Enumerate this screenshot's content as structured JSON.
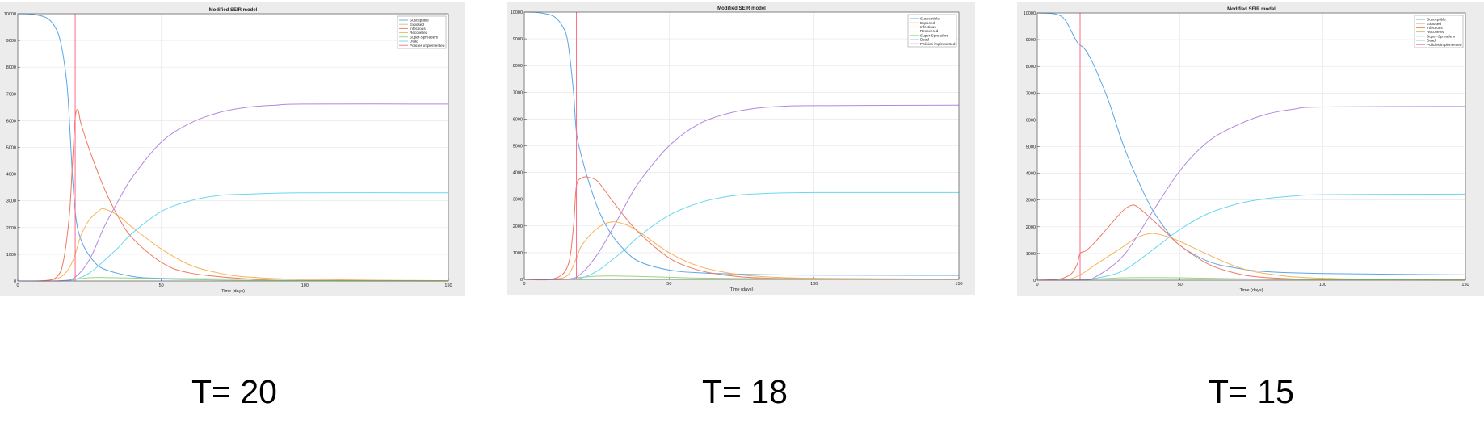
{
  "colors": {
    "Susceptible": "#5aa6e6",
    "Exposed": "#f6b35a",
    "Infectious": "#f07860",
    "Recovered": "#c9c060",
    "Super-Spreaders": "#9ad47a",
    "Dead": "#6ad6ee",
    "Policies implemented": "#ff6a8a",
    "Recovered_line": "#b487dd"
  },
  "chart_data": [
    {
      "type": "line",
      "title": "Modified SEIR model",
      "xlabel": "Time (days)",
      "xlim": [
        0,
        150
      ],
      "ylim": [
        0,
        10000
      ],
      "xticks": [
        0,
        50,
        100,
        150
      ],
      "yticks": [
        0,
        1000,
        2000,
        3000,
        4000,
        5000,
        6000,
        7000,
        8000,
        9000,
        10000
      ],
      "grid": true,
      "legend_position": "top-right",
      "legend": [
        "Susceptible",
        "Exposed",
        "Infectious",
        "Recovered",
        "Super-Spreaders",
        "Dead",
        "Policies implemented"
      ],
      "policy_time": 20,
      "series": [
        {
          "name": "Susceptible",
          "x": [
            0,
            5,
            10,
            13,
            15,
            17,
            18,
            19,
            20,
            21,
            23,
            26,
            30,
            40,
            50,
            70,
            100,
            150
          ],
          "y": [
            10000,
            9980,
            9850,
            9500,
            8900,
            7500,
            6000,
            4000,
            2600,
            1900,
            1300,
            800,
            450,
            170,
            100,
            80,
            75,
            75
          ]
        },
        {
          "name": "Exposed",
          "x": [
            0,
            10,
            15,
            18,
            20,
            22,
            25,
            28,
            30,
            35,
            40,
            50,
            60,
            70,
            80,
            100,
            150
          ],
          "y": [
            0,
            20,
            150,
            500,
            1000,
            1700,
            2300,
            2600,
            2700,
            2450,
            2000,
            1200,
            600,
            300,
            150,
            60,
            10
          ]
        },
        {
          "name": "Infectious",
          "x": [
            0,
            10,
            14,
            16,
            18,
            19,
            20,
            21,
            22,
            25,
            30,
            35,
            40,
            50,
            60,
            80,
            100,
            150
          ],
          "y": [
            0,
            20,
            200,
            800,
            2500,
            4300,
            6100,
            6400,
            5900,
            4900,
            3500,
            2400,
            1600,
            700,
            300,
            80,
            20,
            5
          ]
        },
        {
          "name": "Super-Spreaders",
          "x": [
            0,
            15,
            20,
            25,
            30,
            40,
            50,
            60,
            80,
            100,
            150
          ],
          "y": [
            0,
            5,
            60,
            120,
            130,
            110,
            80,
            50,
            30,
            20,
            10
          ]
        },
        {
          "name": "Dead",
          "x": [
            0,
            15,
            20,
            25,
            30,
            35,
            40,
            50,
            60,
            70,
            80,
            100,
            150
          ],
          "y": [
            0,
            5,
            60,
            300,
            750,
            1250,
            1800,
            2600,
            3000,
            3200,
            3250,
            3300,
            3300
          ]
        },
        {
          "name": "Recovered",
          "x": [
            0,
            15,
            20,
            25,
            30,
            35,
            40,
            50,
            60,
            70,
            80,
            90,
            100,
            150
          ],
          "y": [
            0,
            10,
            150,
            800,
            2000,
            3000,
            3900,
            5200,
            5900,
            6300,
            6500,
            6580,
            6620,
            6620
          ]
        }
      ]
    },
    {
      "type": "line",
      "title": "Modified SEIR model",
      "xlabel": "Time (days)",
      "xlim": [
        0,
        150
      ],
      "ylim": [
        0,
        10000
      ],
      "xticks": [
        0,
        50,
        100,
        150
      ],
      "yticks": [
        0,
        1000,
        2000,
        3000,
        4000,
        5000,
        6000,
        7000,
        8000,
        9000,
        10000
      ],
      "grid": true,
      "legend_position": "top-right",
      "legend": [
        "Susceptible",
        "Exposed",
        "Infectious",
        "Recovered",
        "Super-Spreaders",
        "Dead",
        "Policies implemented"
      ],
      "policy_time": 18,
      "series": [
        {
          "name": "Susceptible",
          "x": [
            0,
            5,
            10,
            13,
            15,
            17,
            18,
            20,
            23,
            26,
            30,
            35,
            40,
            50,
            60,
            80,
            100,
            150
          ],
          "y": [
            10000,
            9980,
            9850,
            9500,
            8900,
            7000,
            5500,
            4500,
            3400,
            2500,
            1700,
            1050,
            650,
            350,
            250,
            180,
            160,
            150
          ]
        },
        {
          "name": "Exposed",
          "x": [
            0,
            10,
            15,
            18,
            20,
            25,
            30,
            35,
            40,
            50,
            60,
            70,
            80,
            100,
            150
          ],
          "y": [
            0,
            20,
            150,
            800,
            1300,
            1900,
            2150,
            2050,
            1750,
            1000,
            500,
            250,
            120,
            40,
            10
          ]
        },
        {
          "name": "Infectious",
          "x": [
            0,
            10,
            15,
            17,
            18,
            20,
            22,
            25,
            28,
            30,
            35,
            40,
            50,
            60,
            70,
            80,
            100,
            150
          ],
          "y": [
            0,
            20,
            500,
            2000,
            3500,
            3800,
            3820,
            3700,
            3300,
            3000,
            2300,
            1700,
            800,
            350,
            150,
            60,
            20,
            5
          ]
        },
        {
          "name": "Super-Spreaders",
          "x": [
            0,
            15,
            18,
            25,
            30,
            40,
            50,
            60,
            80,
            100,
            150
          ],
          "y": [
            0,
            5,
            60,
            120,
            130,
            110,
            80,
            50,
            30,
            20,
            10
          ]
        },
        {
          "name": "Dead",
          "x": [
            0,
            15,
            20,
            25,
            30,
            35,
            40,
            50,
            60,
            70,
            80,
            100,
            150
          ],
          "y": [
            0,
            5,
            60,
            300,
            700,
            1150,
            1650,
            2400,
            2850,
            3100,
            3200,
            3250,
            3250
          ]
        },
        {
          "name": "Recovered",
          "x": [
            0,
            15,
            20,
            25,
            30,
            35,
            40,
            50,
            60,
            70,
            80,
            90,
            100,
            150
          ],
          "y": [
            0,
            10,
            250,
            900,
            1800,
            2800,
            3700,
            5000,
            5800,
            6200,
            6400,
            6480,
            6500,
            6520
          ]
        }
      ]
    },
    {
      "type": "line",
      "title": "Modified SEIR model",
      "xlabel": "Time (days)",
      "xlim": [
        0,
        150
      ],
      "ylim": [
        0,
        10000
      ],
      "xticks": [
        0,
        50,
        100,
        150
      ],
      "yticks": [
        0,
        1000,
        2000,
        3000,
        4000,
        5000,
        6000,
        7000,
        8000,
        9000,
        10000
      ],
      "grid": true,
      "legend_position": "top-right",
      "legend": [
        "Susceptible",
        "Exposed",
        "Infectious",
        "Recovered",
        "Super-Spreaders",
        "Dead",
        "Policies implemented"
      ],
      "policy_time": 15,
      "series": [
        {
          "name": "Susceptible",
          "x": [
            0,
            5,
            8,
            10,
            12,
            14,
            15,
            17,
            20,
            25,
            30,
            35,
            40,
            45,
            50,
            60,
            70,
            80,
            100,
            150
          ],
          "y": [
            10000,
            9980,
            9900,
            9700,
            9300,
            8900,
            8800,
            8600,
            8000,
            6700,
            5100,
            3800,
            2700,
            1900,
            1300,
            700,
            450,
            320,
            250,
            200
          ]
        },
        {
          "name": "Exposed",
          "x": [
            0,
            10,
            15,
            20,
            25,
            30,
            35,
            40,
            45,
            50,
            60,
            70,
            80,
            100,
            150
          ],
          "y": [
            0,
            20,
            200,
            550,
            900,
            1250,
            1600,
            1750,
            1650,
            1450,
            950,
            500,
            250,
            70,
            10
          ]
        },
        {
          "name": "Infectious",
          "x": [
            0,
            8,
            12,
            14,
            15,
            17,
            20,
            25,
            30,
            33,
            35,
            40,
            45,
            50,
            60,
            70,
            80,
            100,
            150
          ],
          "y": [
            0,
            50,
            250,
            600,
            1000,
            1100,
            1400,
            2000,
            2600,
            2800,
            2750,
            2300,
            1800,
            1300,
            600,
            250,
            100,
            30,
            5
          ]
        },
        {
          "name": "Super-Spreaders",
          "x": [
            0,
            15,
            20,
            30,
            40,
            50,
            60,
            80,
            100,
            150
          ],
          "y": [
            0,
            10,
            40,
            90,
            100,
            90,
            70,
            40,
            20,
            10
          ]
        },
        {
          "name": "Dead",
          "x": [
            0,
            15,
            20,
            30,
            40,
            50,
            60,
            70,
            80,
            90,
            100,
            150
          ],
          "y": [
            0,
            5,
            60,
            350,
            1100,
            1900,
            2500,
            2850,
            3050,
            3150,
            3200,
            3220
          ]
        },
        {
          "name": "Recovered",
          "x": [
            0,
            15,
            20,
            30,
            40,
            50,
            60,
            70,
            80,
            90,
            100,
            150
          ],
          "y": [
            0,
            10,
            100,
            900,
            2500,
            4100,
            5200,
            5800,
            6200,
            6400,
            6480,
            6500
          ]
        }
      ]
    }
  ],
  "captions": [
    "T= 20",
    "T= 18",
    "T= 15"
  ]
}
